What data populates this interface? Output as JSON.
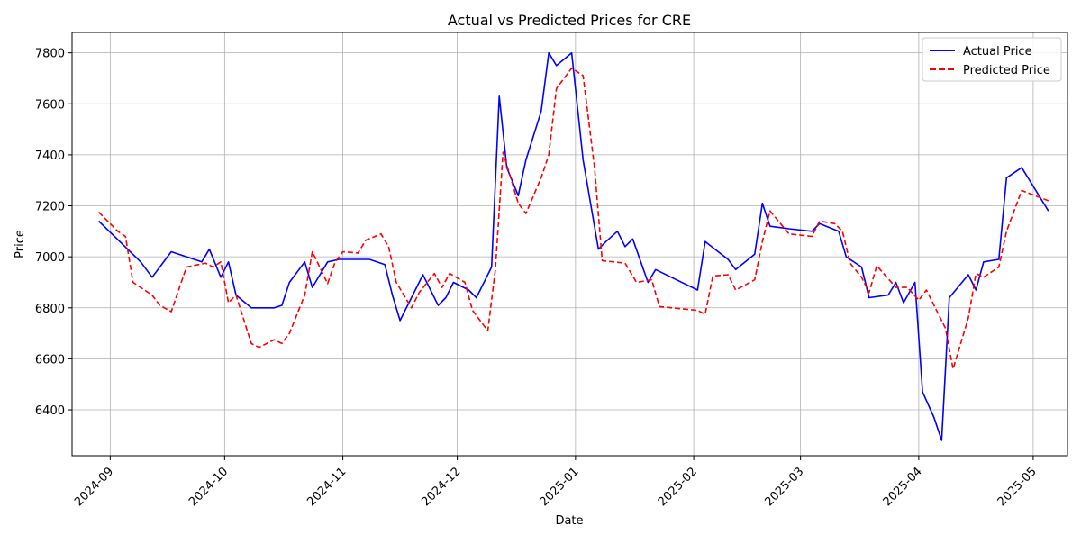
{
  "chart_data": {
    "type": "line",
    "title": "Actual vs Predicted Prices for CRE",
    "xlabel": "Date",
    "ylabel": "Price",
    "xlim": [
      "2024-08-22",
      "2025-05-10"
    ],
    "ylim": [
      6220,
      7880
    ],
    "x_ticks": [
      "2024-09-01",
      "2024-10-01",
      "2024-11-01",
      "2024-12-01",
      "2025-01-01",
      "2025-02-01",
      "2025-03-01",
      "2025-04-01",
      "2025-05-01"
    ],
    "x_tick_labels": [
      "2024-09",
      "2024-10",
      "2024-11",
      "2024-12",
      "2025-01",
      "2025-02",
      "2025-03",
      "2025-04",
      "2025-05"
    ],
    "y_ticks": [
      6400,
      6600,
      6800,
      7000,
      7200,
      7400,
      7600,
      7800
    ],
    "y_tick_labels": [
      "6400",
      "6600",
      "6800",
      "7000",
      "7200",
      "7400",
      "7600",
      "7800"
    ],
    "grid": true,
    "legend_position": "top-right",
    "series": [
      {
        "name": "Actual Price",
        "color": "#0000ff",
        "dash": "solid",
        "points": [
          [
            "2024-08-29",
            7140
          ],
          [
            "2024-09-09",
            6980
          ],
          [
            "2024-09-12",
            6920
          ],
          [
            "2024-09-14",
            6960
          ],
          [
            "2024-09-17",
            7020
          ],
          [
            "2024-09-25",
            6980
          ],
          [
            "2024-09-27",
            7030
          ],
          [
            "2024-09-30",
            6920
          ],
          [
            "2024-10-02",
            6980
          ],
          [
            "2024-10-04",
            6850
          ],
          [
            "2024-10-08",
            6800
          ],
          [
            "2024-10-14",
            6800
          ],
          [
            "2024-10-16",
            6810
          ],
          [
            "2024-10-18",
            6900
          ],
          [
            "2024-10-22",
            6980
          ],
          [
            "2024-10-24",
            6880
          ],
          [
            "2024-10-28",
            6980
          ],
          [
            "2024-10-31",
            6990
          ],
          [
            "2024-11-08",
            6990
          ],
          [
            "2024-11-12",
            6970
          ],
          [
            "2024-11-14",
            6850
          ],
          [
            "2024-11-16",
            6750
          ],
          [
            "2024-11-20",
            6870
          ],
          [
            "2024-11-22",
            6930
          ],
          [
            "2024-11-26",
            6810
          ],
          [
            "2024-11-28",
            6840
          ],
          [
            "2024-11-30",
            6900
          ],
          [
            "2024-12-04",
            6870
          ],
          [
            "2024-12-06",
            6840
          ],
          [
            "2024-12-10",
            6960
          ],
          [
            "2024-12-12",
            7630
          ],
          [
            "2024-12-14",
            7350
          ],
          [
            "2024-12-17",
            7240
          ],
          [
            "2024-12-19",
            7380
          ],
          [
            "2024-12-23",
            7570
          ],
          [
            "2024-12-25",
            7800
          ],
          [
            "2024-12-27",
            7750
          ],
          [
            "2024-12-31",
            7800
          ],
          [
            "2025-01-03",
            7380
          ],
          [
            "2025-01-07",
            7030
          ],
          [
            "2025-01-09",
            7060
          ],
          [
            "2025-01-12",
            7100
          ],
          [
            "2025-01-14",
            7040
          ],
          [
            "2025-01-16",
            7070
          ],
          [
            "2025-01-20",
            6900
          ],
          [
            "2025-01-22",
            6950
          ],
          [
            "2025-02-02",
            6870
          ],
          [
            "2025-02-04",
            7060
          ],
          [
            "2025-02-10",
            6990
          ],
          [
            "2025-02-12",
            6950
          ],
          [
            "2025-02-17",
            7010
          ],
          [
            "2025-02-19",
            7210
          ],
          [
            "2025-02-21",
            7120
          ],
          [
            "2025-02-26",
            7110
          ],
          [
            "2025-03-04",
            7100
          ],
          [
            "2025-03-06",
            7130
          ],
          [
            "2025-03-11",
            7100
          ],
          [
            "2025-03-13",
            7000
          ],
          [
            "2025-03-17",
            6960
          ],
          [
            "2025-03-19",
            6840
          ],
          [
            "2025-03-24",
            6850
          ],
          [
            "2025-03-26",
            6900
          ],
          [
            "2025-03-28",
            6820
          ],
          [
            "2025-03-31",
            6900
          ],
          [
            "2025-04-02",
            6470
          ],
          [
            "2025-04-05",
            6370
          ],
          [
            "2025-04-07",
            6280
          ],
          [
            "2025-04-09",
            6840
          ],
          [
            "2025-04-14",
            6930
          ],
          [
            "2025-04-16",
            6870
          ],
          [
            "2025-04-18",
            6980
          ],
          [
            "2025-04-22",
            6990
          ],
          [
            "2025-04-24",
            7310
          ],
          [
            "2025-04-28",
            7350
          ],
          [
            "2025-05-05",
            7180
          ]
        ]
      },
      {
        "name": "Predicted Price",
        "color": "#ff0000",
        "dash": "dashed",
        "points": [
          [
            "2024-08-29",
            7175
          ],
          [
            "2024-09-03",
            7100
          ],
          [
            "2024-09-05",
            7080
          ],
          [
            "2024-09-07",
            6900
          ],
          [
            "2024-09-12",
            6850
          ],
          [
            "2024-09-14",
            6810
          ],
          [
            "2024-09-17",
            6785
          ],
          [
            "2024-09-21",
            6960
          ],
          [
            "2024-09-26",
            6975
          ],
          [
            "2024-09-28",
            6960
          ],
          [
            "2024-09-30",
            6980
          ],
          [
            "2024-10-02",
            6820
          ],
          [
            "2024-10-04",
            6850
          ],
          [
            "2024-10-08",
            6660
          ],
          [
            "2024-10-10",
            6645
          ],
          [
            "2024-10-14",
            6675
          ],
          [
            "2024-10-16",
            6660
          ],
          [
            "2024-10-18",
            6700
          ],
          [
            "2024-10-22",
            6850
          ],
          [
            "2024-10-24",
            7020
          ],
          [
            "2024-10-28",
            6895
          ],
          [
            "2024-10-30",
            6980
          ],
          [
            "2024-11-01",
            7020
          ],
          [
            "2024-11-05",
            7015
          ],
          [
            "2024-11-07",
            7065
          ],
          [
            "2024-11-11",
            7090
          ],
          [
            "2024-11-13",
            7040
          ],
          [
            "2024-11-15",
            6900
          ],
          [
            "2024-11-19",
            6800
          ],
          [
            "2024-11-21",
            6860
          ],
          [
            "2024-11-25",
            6935
          ],
          [
            "2024-11-27",
            6880
          ],
          [
            "2024-11-29",
            6935
          ],
          [
            "2024-12-03",
            6900
          ],
          [
            "2024-12-05",
            6790
          ],
          [
            "2024-12-09",
            6710
          ],
          [
            "2024-12-11",
            6950
          ],
          [
            "2024-12-13",
            7410
          ],
          [
            "2024-12-17",
            7210
          ],
          [
            "2024-12-19",
            7170
          ],
          [
            "2024-12-23",
            7310
          ],
          [
            "2024-12-25",
            7400
          ],
          [
            "2024-12-27",
            7660
          ],
          [
            "2024-12-31",
            7740
          ],
          [
            "2025-01-03",
            7710
          ],
          [
            "2025-01-06",
            7350
          ],
          [
            "2025-01-08",
            6985
          ],
          [
            "2025-01-14",
            6975
          ],
          [
            "2025-01-17",
            6900
          ],
          [
            "2025-01-21",
            6910
          ],
          [
            "2025-01-23",
            6805
          ],
          [
            "2025-02-02",
            6790
          ],
          [
            "2025-02-04",
            6775
          ],
          [
            "2025-02-06",
            6925
          ],
          [
            "2025-02-10",
            6930
          ],
          [
            "2025-02-12",
            6870
          ],
          [
            "2025-02-17",
            6910
          ],
          [
            "2025-02-19",
            7060
          ],
          [
            "2025-02-21",
            7180
          ],
          [
            "2025-02-26",
            7090
          ],
          [
            "2025-03-04",
            7080
          ],
          [
            "2025-03-06",
            7140
          ],
          [
            "2025-03-10",
            7130
          ],
          [
            "2025-03-12",
            7100
          ],
          [
            "2025-03-14",
            6975
          ],
          [
            "2025-03-17",
            6920
          ],
          [
            "2025-03-19",
            6860
          ],
          [
            "2025-03-21",
            6965
          ],
          [
            "2025-03-26",
            6880
          ],
          [
            "2025-03-29",
            6880
          ],
          [
            "2025-04-01",
            6830
          ],
          [
            "2025-04-03",
            6870
          ],
          [
            "2025-04-08",
            6720
          ],
          [
            "2025-04-10",
            6560
          ],
          [
            "2025-04-14",
            6760
          ],
          [
            "2025-04-16",
            6935
          ],
          [
            "2025-04-18",
            6920
          ],
          [
            "2025-04-22",
            6960
          ],
          [
            "2025-04-24",
            7100
          ],
          [
            "2025-04-28",
            7260
          ],
          [
            "2025-05-05",
            7220
          ]
        ]
      }
    ]
  }
}
